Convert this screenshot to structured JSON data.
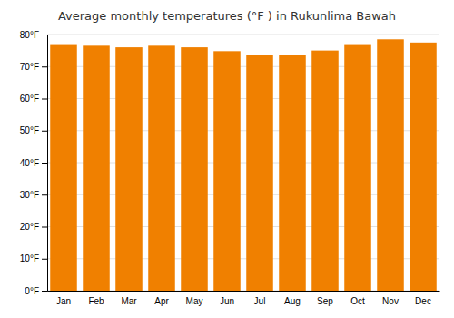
{
  "chart_data": {
    "type": "bar",
    "title": "Average monthly temperatures (°F ) in Rukunlima Bawah",
    "categories": [
      "Jan",
      "Feb",
      "Mar",
      "Apr",
      "May",
      "Jun",
      "Jul",
      "Aug",
      "Sep",
      "Oct",
      "Nov",
      "Dec"
    ],
    "values": [
      77.0,
      76.5,
      76.0,
      76.5,
      76.0,
      74.8,
      73.5,
      73.5,
      75.0,
      77.0,
      78.5,
      77.5
    ],
    "color": "#F08000",
    "ylim": [
      0,
      80
    ],
    "yticks": [
      {
        "value": 0,
        "label": "0°F"
      },
      {
        "value": 10,
        "label": "10°F"
      },
      {
        "value": 20,
        "label": "20°F"
      },
      {
        "value": 30,
        "label": "30°F"
      },
      {
        "value": 40,
        "label": "40°F"
      },
      {
        "value": 50,
        "label": "50°F"
      },
      {
        "value": 60,
        "label": "60°F"
      },
      {
        "value": 70,
        "label": "70°F"
      },
      {
        "value": 80,
        "label": "80°F"
      }
    ],
    "grid": true
  }
}
